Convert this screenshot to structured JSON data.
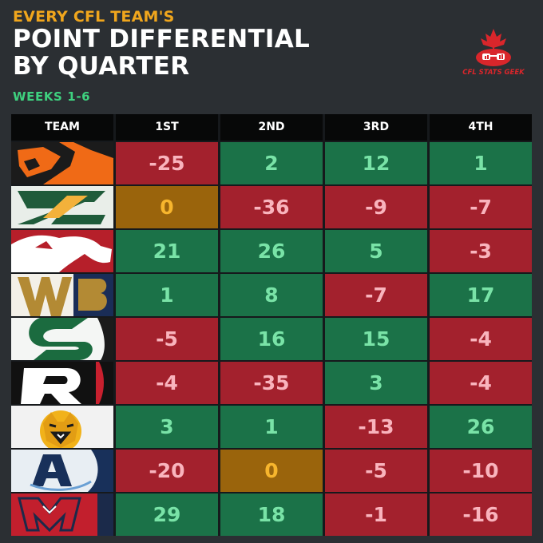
{
  "header": {
    "eyebrow": "EVERY CFL TEAM'S",
    "title_line1": "POINT DIFFERENTIAL",
    "title_line2": "BY QUARTER",
    "subtitle": "WEEKS 1-6"
  },
  "brand": {
    "name": "CFL STATS GEEK",
    "color": "#d9262b"
  },
  "colors": {
    "positive_bg": "#1b7248",
    "positive_text": "#79e3a7",
    "negative_bg": "#a3212d",
    "negative_text": "#f9b4bd",
    "zero_bg": "#9a640c",
    "zero_text": "#f7b52d"
  },
  "chart_data": {
    "type": "table",
    "columns": [
      "TEAM",
      "1ST",
      "2ND",
      "3RD",
      "4TH"
    ],
    "rows": [
      {
        "team_logo": "bc-lions-logo",
        "values": [
          -25,
          2,
          12,
          1
        ]
      },
      {
        "team_logo": "edmonton-elks-logo",
        "values": [
          0,
          -36,
          -9,
          -7
        ]
      },
      {
        "team_logo": "calgary-stampeders-logo",
        "values": [
          21,
          26,
          5,
          -3
        ]
      },
      {
        "team_logo": "winnipeg-blue-bombers-logo",
        "values": [
          1,
          8,
          -7,
          17
        ]
      },
      {
        "team_logo": "saskatchewan-roughriders-logo",
        "values": [
          -5,
          16,
          15,
          -4
        ]
      },
      {
        "team_logo": "ottawa-redblacks-logo",
        "values": [
          -4,
          -35,
          3,
          -4
        ]
      },
      {
        "team_logo": "hamilton-tiger-cats-logo",
        "values": [
          3,
          1,
          -13,
          26
        ]
      },
      {
        "team_logo": "toronto-argonauts-logo",
        "values": [
          -20,
          0,
          -5,
          -10
        ]
      },
      {
        "team_logo": "montreal-alouettes-logo",
        "values": [
          29,
          18,
          -1,
          -16
        ]
      }
    ]
  }
}
